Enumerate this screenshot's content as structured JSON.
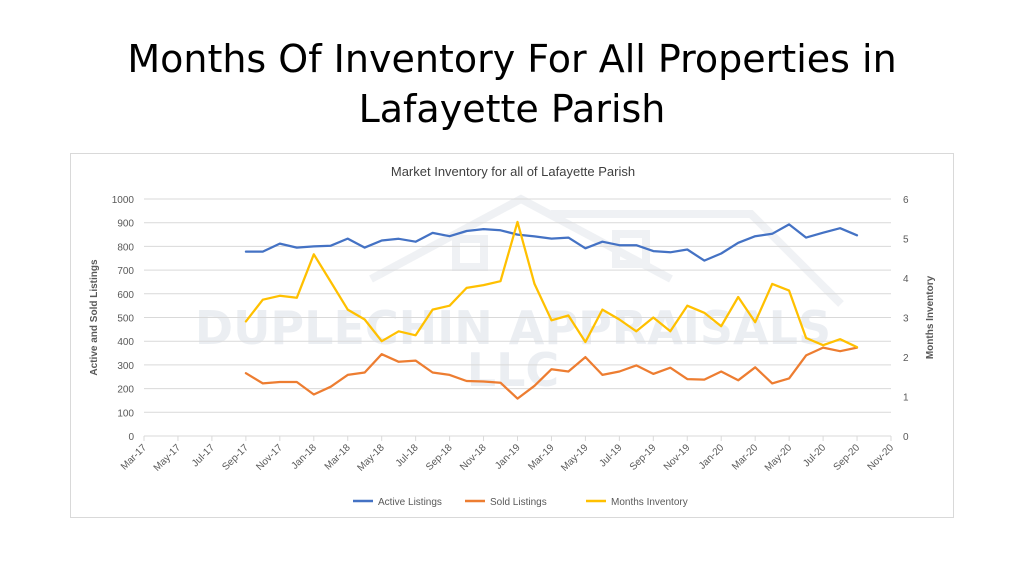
{
  "slide": {
    "title_line1": "Months Of Inventory For All Properties in",
    "title_line2": "Lafayette Parish"
  },
  "watermark": {
    "line1": "DUPLECHIN APPRAISALS",
    "line2": "LLC"
  },
  "colors": {
    "active": "#4472c4",
    "sold": "#ed7d31",
    "months": "#ffc000",
    "grid": "#d9d9d9",
    "axis_text": "#595959"
  },
  "chart_data": {
    "type": "line",
    "title": "Market Inventory for all of Lafayette Parish",
    "ylabel": "Active and Sold Listings",
    "y2label": "Months Inventory",
    "ylim": [
      0,
      1000
    ],
    "y2lim": [
      0,
      6
    ],
    "yticks": [
      "0",
      "100",
      "200",
      "300",
      "400",
      "500",
      "600",
      "700",
      "800",
      "900",
      "1000"
    ],
    "y2ticks": [
      "0",
      "1",
      "2",
      "3",
      "4",
      "5",
      "6"
    ],
    "xticks": [
      "Mar-17",
      "May-17",
      "Jul-17",
      "Sep-17",
      "Nov-17",
      "Jan-18",
      "Mar-18",
      "May-18",
      "Jul-18",
      "Sep-18",
      "Nov-18",
      "Jan-19",
      "Mar-19",
      "May-19",
      "Jul-19",
      "Sep-19",
      "Nov-19",
      "Jan-20",
      "Mar-20",
      "May-20",
      "Jul-20",
      "Sep-20",
      "Nov-20"
    ],
    "x_start": "Mar-17",
    "x_end": "Nov-20",
    "legend_position": "bottom",
    "grid": true,
    "x": [
      "Sep-17",
      "Oct-17",
      "Nov-17",
      "Dec-17",
      "Jan-18",
      "Feb-18",
      "Mar-18",
      "Apr-18",
      "May-18",
      "Jun-18",
      "Jul-18",
      "Aug-18",
      "Sep-18",
      "Oct-18",
      "Nov-18",
      "Dec-18",
      "Jan-19",
      "Feb-19",
      "Mar-19",
      "Apr-19",
      "May-19",
      "Jun-19",
      "Jul-19",
      "Aug-19",
      "Sep-19",
      "Oct-19",
      "Nov-19",
      "Dec-19",
      "Jan-20",
      "Feb-20",
      "Mar-20",
      "Apr-20",
      "May-20",
      "Jun-20",
      "Jul-20",
      "Aug-20",
      "Sep-20"
    ],
    "series": [
      {
        "name": "Active Listings",
        "axis": "left",
        "values": [
          778,
          778,
          812,
          795,
          800,
          803,
          833,
          795,
          825,
          832,
          820,
          857,
          843,
          865,
          873,
          868,
          850,
          842,
          833,
          837,
          792,
          820,
          805,
          805,
          780,
          775,
          787,
          740,
          770,
          815,
          843,
          853,
          893,
          837,
          858,
          877,
          847
        ]
      },
      {
        "name": "Sold Listings",
        "axis": "left",
        "values": [
          265,
          222,
          228,
          228,
          175,
          208,
          258,
          268,
          345,
          313,
          318,
          268,
          258,
          232,
          230,
          225,
          158,
          212,
          282,
          272,
          333,
          258,
          272,
          298,
          262,
          288,
          240,
          238,
          272,
          235,
          290,
          222,
          243,
          340,
          373,
          358,
          373
        ]
      },
      {
        "name": "Months Inventory",
        "axis": "right",
        "values": [
          2.9,
          3.45,
          3.55,
          3.5,
          4.6,
          3.9,
          3.2,
          2.95,
          2.4,
          2.65,
          2.55,
          3.2,
          3.3,
          3.75,
          3.82,
          3.92,
          5.42,
          3.85,
          2.93,
          3.05,
          2.38,
          3.2,
          2.95,
          2.65,
          3.0,
          2.65,
          3.3,
          3.12,
          2.78,
          3.52,
          2.88,
          3.85,
          3.68,
          2.48,
          2.3,
          2.45,
          2.25
        ]
      }
    ]
  }
}
